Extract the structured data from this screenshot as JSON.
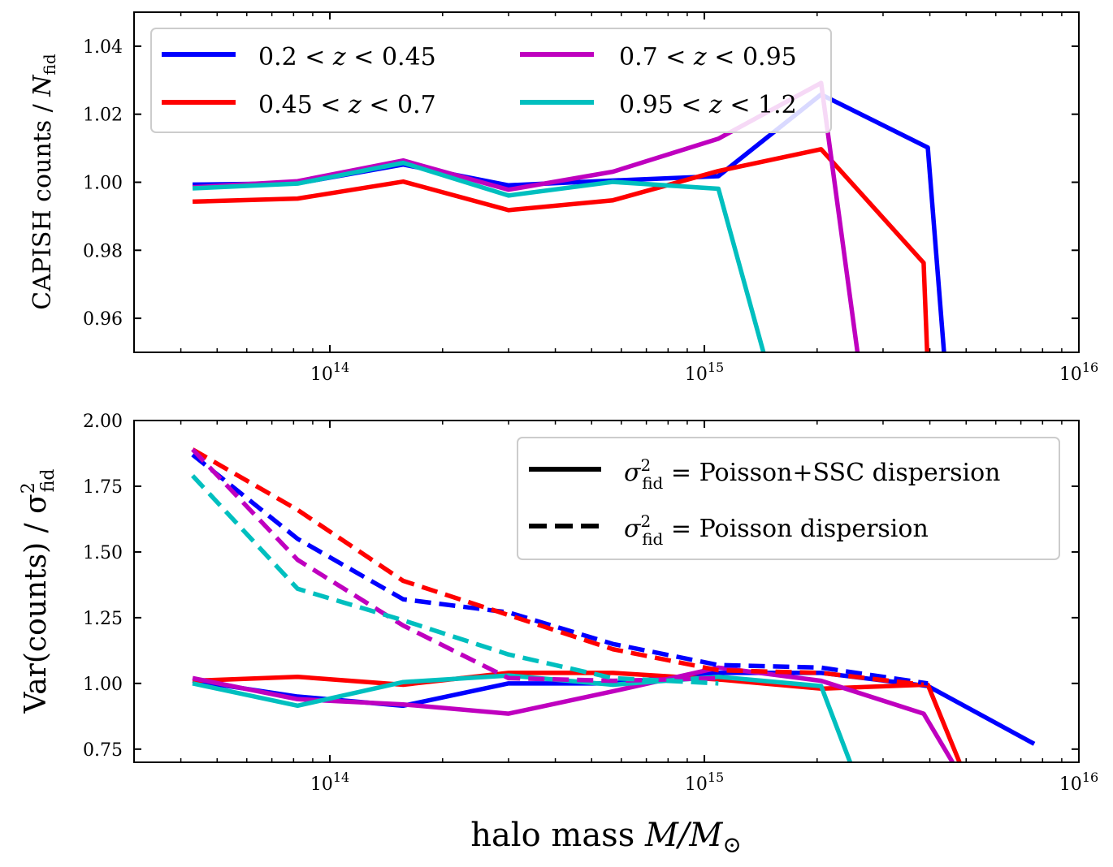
{
  "chart_data": [
    {
      "type": "line",
      "panel": "top",
      "xscale": "log",
      "xlim": [
        30000000000000.0,
        1e+16
      ],
      "ylim": [
        0.95,
        1.05
      ],
      "yticks": [
        0.96,
        0.98,
        1.0,
        1.02,
        1.04
      ],
      "ytick_labels": [
        "0.96",
        "0.98",
        "1.00",
        "1.02",
        "1.04"
      ],
      "xtick_labels": [
        {
          "base": "10",
          "exp": "14"
        },
        {
          "base": "10",
          "exp": "15"
        },
        {
          "base": "10",
          "exp": "16"
        }
      ],
      "ylabel": "CAPISH counts / N_fid",
      "ylabel_main": "CAPISH counts / ",
      "ylabel_var": "N",
      "ylabel_sub": "fid",
      "legend": {
        "placement": "top-left",
        "columns": 2
      },
      "series": [
        {
          "name": "0.2 < z < 0.45",
          "label_left": "0.2 < ",
          "label_var": "z",
          "label_right": " < 0.45",
          "color": "#0000ff",
          "style": "solid",
          "x": [
            43000000000000.0,
            82000000000000.0,
            157000000000000.0,
            300000000000000.0,
            570000000000000.0,
            1090000000000000.0,
            2050000000000000.0,
            3950000000000000.0,
            4400000000000000.0
          ],
          "y": [
            0.9993,
            0.9997,
            1.0052,
            0.9991,
            1.0005,
            1.0018,
            1.0258,
            1.0102,
            0.945
          ]
        },
        {
          "name": "0.45 < z < 0.7",
          "label_left": "0.45 < ",
          "label_var": "z",
          "label_right": " < 0.7",
          "color": "#ff0000",
          "style": "solid",
          "x": [
            43000000000000.0,
            82000000000000.0,
            157000000000000.0,
            300000000000000.0,
            570000000000000.0,
            1090000000000000.0,
            2050000000000000.0,
            3850000000000000.0,
            3950000000000000.0
          ],
          "y": [
            0.9943,
            0.9952,
            1.0002,
            0.9918,
            0.9947,
            1.0033,
            1.0097,
            0.9763,
            0.945
          ]
        },
        {
          "name": "0.7 < z < 0.95",
          "label_left": "0.7 < ",
          "label_var": "z",
          "label_right": " < 0.95",
          "color": "#bf00bf",
          "style": "solid",
          "x": [
            43000000000000.0,
            82000000000000.0,
            157000000000000.0,
            300000000000000.0,
            570000000000000.0,
            1090000000000000.0,
            2050000000000000.0,
            2600000000000000.0
          ],
          "y": [
            0.9985,
            1.0003,
            1.0064,
            0.9978,
            1.0031,
            1.0128,
            1.0292,
            0.945
          ]
        },
        {
          "name": "0.95 < z < 1.2",
          "label_left": "0.95 < ",
          "label_var": "z",
          "label_right": " < 1.2",
          "color": "#00bfbf",
          "style": "solid",
          "x": [
            43000000000000.0,
            82000000000000.0,
            157000000000000.0,
            300000000000000.0,
            570000000000000.0,
            1090000000000000.0,
            1480000000000000.0
          ],
          "y": [
            0.9982,
            0.9996,
            1.0057,
            0.9961,
            1.0001,
            0.9981,
            0.945
          ]
        }
      ]
    },
    {
      "type": "line",
      "panel": "bottom",
      "xscale": "log",
      "xlim": [
        30000000000000.0,
        1e+16
      ],
      "ylim": [
        0.7,
        2.0
      ],
      "yticks": [
        0.75,
        1.0,
        1.25,
        1.5,
        1.75,
        2.0
      ],
      "ytick_labels": [
        "0.75",
        "1.00",
        "1.25",
        "1.50",
        "1.75",
        "2.00"
      ],
      "xtick_labels": [
        {
          "base": "10",
          "exp": "14"
        },
        {
          "base": "10",
          "exp": "15"
        },
        {
          "base": "10",
          "exp": "16"
        }
      ],
      "ylabel": "Var(counts) / σ²_fid",
      "ylabel_main": "Var(counts) / σ",
      "ylabel_sup": "2",
      "ylabel_sub": "fid",
      "xlabel": "halo mass M/M☉",
      "xlabel_text": "halo mass ",
      "xlabel_var": "M/M",
      "xlabel_sym": "⊙",
      "legend": {
        "placement": "top-right",
        "entries": [
          {
            "symbol": "σ",
            "sup": "2",
            "sub": "fid",
            "text": " = Poisson+SSC dispersion",
            "style": "solid",
            "color": "#000000"
          },
          {
            "symbol": "σ",
            "sup": "2",
            "sub": "fid",
            "text": " = Poisson dispersion",
            "style": "dashed",
            "color": "#000000"
          }
        ]
      },
      "series": [
        {
          "name": "0.2 < z < 0.45 (Poisson+SSC)",
          "color": "#0000ff",
          "style": "solid",
          "x": [
            43000000000000.0,
            82000000000000.0,
            157000000000000.0,
            300000000000000.0,
            570000000000000.0,
            1090000000000000.0,
            2050000000000000.0,
            3950000000000000.0,
            7600000000000000.0
          ],
          "y": [
            1.01,
            0.95,
            0.915,
            1.0,
            1.0,
            1.04,
            1.04,
            0.99,
            0.77
          ]
        },
        {
          "name": "0.45 < z < 0.7 (Poisson+SSC)",
          "color": "#ff0000",
          "style": "solid",
          "x": [
            43000000000000.0,
            82000000000000.0,
            157000000000000.0,
            300000000000000.0,
            570000000000000.0,
            1090000000000000.0,
            2050000000000000.0,
            3850000000000000.0,
            3950000000000000.0,
            4800000000000000.0
          ],
          "y": [
            1.01,
            1.025,
            0.995,
            1.04,
            1.04,
            1.015,
            0.98,
            0.995,
            0.995,
            0.7
          ]
        },
        {
          "name": "0.7 < z < 0.95 (Poisson+SSC)",
          "color": "#bf00bf",
          "style": "solid",
          "x": [
            43000000000000.0,
            82000000000000.0,
            157000000000000.0,
            300000000000000.0,
            570000000000000.0,
            1090000000000000.0,
            2050000000000000.0,
            3850000000000000.0,
            4600000000000000.0
          ],
          "y": [
            1.02,
            0.94,
            0.92,
            0.885,
            0.97,
            1.06,
            1.01,
            0.885,
            0.7
          ]
        },
        {
          "name": "0.95 < z < 1.2 (Poisson+SSC)",
          "color": "#00bfbf",
          "style": "solid",
          "x": [
            43000000000000.0,
            82000000000000.0,
            157000000000000.0,
            300000000000000.0,
            570000000000000.0,
            1090000000000000.0,
            2050000000000000.0,
            2450000000000000.0
          ],
          "y": [
            1.0,
            0.915,
            1.005,
            1.03,
            0.995,
            1.025,
            0.99,
            0.7
          ]
        },
        {
          "name": "0.2 < z < 0.45 (Poisson)",
          "color": "#0000ff",
          "style": "dashed",
          "x": [
            43000000000000.0,
            82000000000000.0,
            157000000000000.0,
            300000000000000.0,
            570000000000000.0,
            1090000000000000.0,
            2050000000000000.0,
            3950000000000000.0
          ],
          "y": [
            1.87,
            1.55,
            1.32,
            1.27,
            1.15,
            1.07,
            1.06,
            1.0
          ]
        },
        {
          "name": "0.45 < z < 0.7 (Poisson)",
          "color": "#ff0000",
          "style": "dashed",
          "x": [
            43000000000000.0,
            82000000000000.0,
            157000000000000.0,
            300000000000000.0,
            570000000000000.0,
            1090000000000000.0,
            2050000000000000.0,
            3850000000000000.0
          ],
          "y": [
            1.89,
            1.66,
            1.39,
            1.26,
            1.13,
            1.05,
            1.04,
            0.995
          ]
        },
        {
          "name": "0.7 < z < 0.95 (Poisson)",
          "color": "#bf00bf",
          "style": "dashed",
          "x": [
            43000000000000.0,
            82000000000000.0,
            157000000000000.0,
            300000000000000.0,
            570000000000000.0,
            1090000000000000.0
          ],
          "y": [
            1.89,
            1.47,
            1.22,
            1.02,
            1.01,
            1.02
          ]
        },
        {
          "name": "0.95 < z < 1.2 (Poisson)",
          "color": "#00bfbf",
          "style": "dashed",
          "x": [
            43000000000000.0,
            82000000000000.0,
            157000000000000.0,
            300000000000000.0,
            570000000000000.0,
            1090000000000000.0
          ],
          "y": [
            1.79,
            1.36,
            1.24,
            1.11,
            1.02,
            1.0
          ]
        }
      ]
    }
  ]
}
